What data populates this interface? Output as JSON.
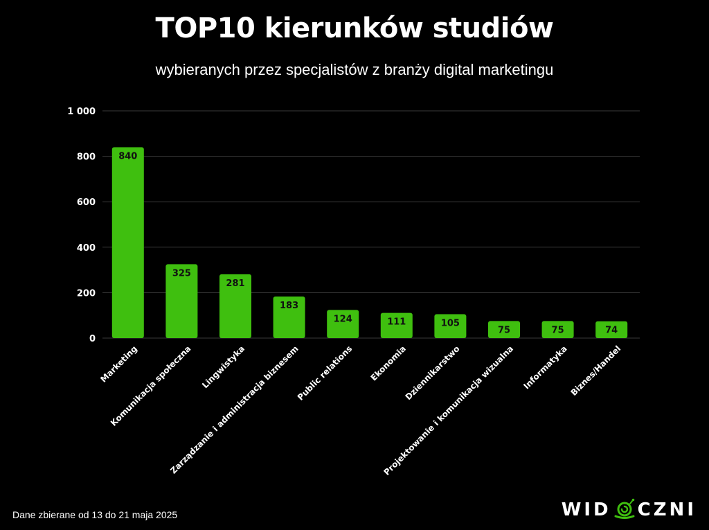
{
  "title": "TOP10 kierunków studiów",
  "subtitle": "wybieranych przez specjalistów z branży digital marketingu",
  "footnote": "Dane zbierane od 13 do 21 maja 2025",
  "brand": {
    "logo_text": "WIDOCZNI",
    "left_text": "WID",
    "right_text": "CZNI",
    "icon": "snail-icon",
    "accent_color": "#3fbf0f"
  },
  "colors": {
    "bar": "#3fbf0f",
    "background": "#000000",
    "grid": "#3a3a3a",
    "text": "#ffffff",
    "data_label": "#111111"
  },
  "chart_data": {
    "type": "bar",
    "title": "TOP10 kierunków studiów",
    "subtitle": "wybieranych przez specjalistów z branży digital marketingu",
    "xlabel": "",
    "ylabel": "",
    "ylim": [
      0,
      1000
    ],
    "yticks": [
      0,
      200,
      400,
      600,
      800,
      1000
    ],
    "ytick_labels": [
      "0",
      "200",
      "400",
      "600",
      "800",
      "1 000"
    ],
    "grid": true,
    "legend": "none",
    "categories": [
      "Marketing",
      "Komunikacja społeczna",
      "Lingwistyka",
      "Zarządzanie i administracja biznesem",
      "Public relations",
      "Ekonomia",
      "Dziennikarstwo",
      "Projektowanie i komunikacja wizualna",
      "Informatyka",
      "Biznes/Handel"
    ],
    "values": [
      840,
      325,
      281,
      183,
      124,
      111,
      105,
      75,
      75,
      74
    ]
  }
}
